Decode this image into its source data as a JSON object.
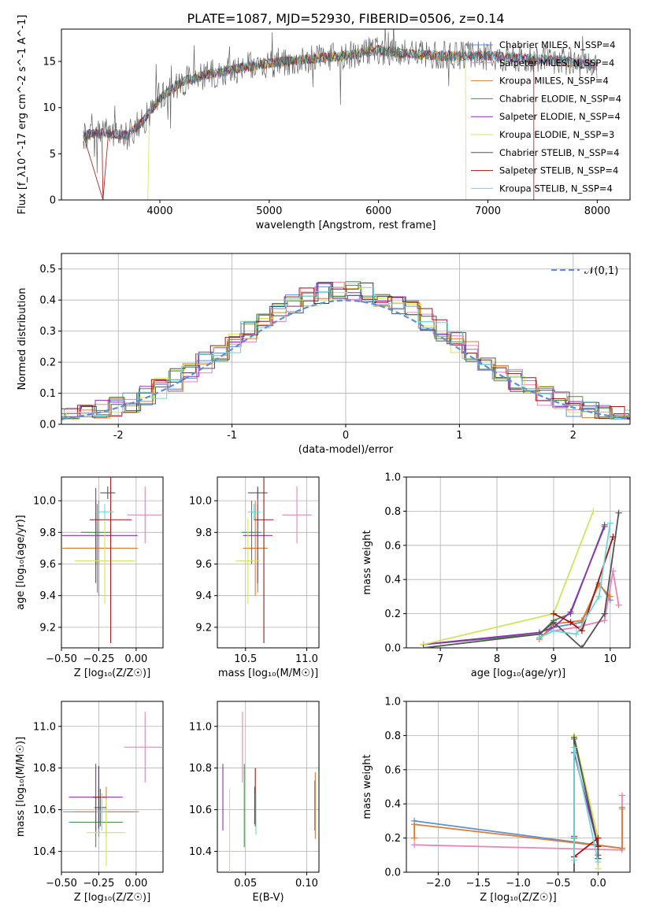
{
  "colors": {
    "Chabrier MILES": "#5b8fd6",
    "Salpeter MILES": "#e884b8",
    "Kroupa MILES": "#e07c2e",
    "Chabrier ELODIE": "#4d8a4d",
    "Salpeter ELODIE": "#8e2fb5",
    "Kroupa ELODIE": "#d2e55a",
    "Chabrier STELIB": "#555555",
    "Salpeter STELIB": "#a01616",
    "Kroupa STELIB": "#6ed6d6"
  },
  "chart_data": [
    {
      "id": "spectrum",
      "type": "line",
      "title": "PLATE=1087, MJD=52930, FIBERID=0506, z=0.14",
      "xlabel": "wavelength [Angstrom, rest frame]",
      "ylabel": "Flux [f_λ10^-17 erg cm^-2 s^-1 A^-1]",
      "xlim": [
        3100,
        8300
      ],
      "ylim": [
        0,
        18.5
      ],
      "xticks": [
        4000,
        5000,
        6000,
        7000,
        8000
      ],
      "yticks": [
        0,
        5,
        10,
        15
      ],
      "grid": false,
      "legend": "right",
      "series": [
        {
          "name": "Chabrier MILES, N_SSP=4",
          "color": "Chabrier MILES"
        },
        {
          "name": "Salpeter MILES, N_SSP=4",
          "color": "Salpeter MILES"
        },
        {
          "name": "Kroupa MILES, N_SSP=4",
          "color": "Kroupa MILES"
        },
        {
          "name": "Chabrier ELODIE, N_SSP=4",
          "color": "Chabrier ELODIE"
        },
        {
          "name": "Salpeter ELODIE, N_SSP=4",
          "color": "Salpeter ELODIE"
        },
        {
          "name": "Kroupa ELODIE, N_SSP=3",
          "color": "Kroupa ELODIE"
        },
        {
          "name": "Chabrier STELIB, N_SSP=4",
          "color": "Chabrier STELIB"
        },
        {
          "name": "Salpeter STELIB, N_SSP=4",
          "color": "Salpeter STELIB"
        },
        {
          "name": "Kroupa STELIB, N_SSP=4",
          "color": "Kroupa STELIB"
        }
      ],
      "continuum_x": [
        3300,
        3500,
        3700,
        3850,
        4000,
        4200,
        4400,
        4700,
        5000,
        5300,
        5600,
        6000,
        6300,
        6600,
        7000,
        7400,
        7800,
        8000
      ],
      "continuum_y": [
        7.0,
        7.3,
        7.0,
        8.6,
        11.0,
        12.8,
        13.5,
        14.2,
        14.8,
        15.2,
        15.5,
        16.2,
        15.8,
        15.6,
        15.6,
        15.3,
        14.9,
        14.5
      ],
      "cutoffs": [
        {
          "series": "Salpeter STELIB",
          "from": 3300,
          "to": 7420,
          "drop_start": 3480,
          "drop_end": 3530
        },
        {
          "series": "Kroupa ELODIE",
          "from": 3900,
          "to": 6800,
          "drop_start": 3890,
          "drop_end": 3905
        }
      ]
    },
    {
      "id": "residuals",
      "type": "histogram",
      "xlabel": "(data-model)/error",
      "ylabel": "Normed distribution",
      "xlim": [
        -2.5,
        2.5
      ],
      "ylim": [
        0,
        0.55
      ],
      "xticks": [
        -2,
        -1,
        0,
        1,
        2
      ],
      "yticks": [
        0.0,
        0.1,
        0.2,
        0.3,
        0.4,
        0.5
      ],
      "grid": true,
      "legend": "top-right",
      "reference": {
        "name": "𝒩(0,1)",
        "mean": 0,
        "sigma": 1,
        "color": "#5b8fd6"
      },
      "bins": 40
    },
    {
      "id": "age-vs-Z",
      "type": "scatter",
      "xlabel": "Z [log₁₀(Z/Z☉)]",
      "ylabel": "age  [log₁₀(age/yr)]",
      "xlim": [
        -0.5,
        0.18
      ],
      "ylim": [
        9.07,
        10.15
      ],
      "xticks": [
        -0.5,
        -0.25,
        0.0
      ],
      "xtick_labels": [
        "−0.50",
        "−0.25",
        "0.00"
      ],
      "yticks": [
        9.2,
        9.4,
        9.6,
        9.8,
        10.0
      ],
      "grid": true,
      "points": [
        {
          "series": "Chabrier MILES",
          "x": -0.26,
          "xerr": 0.22,
          "y": 9.7,
          "yerr": 0.28
        },
        {
          "series": "Salpeter MILES",
          "x": 0.06,
          "xerr": 0.12,
          "y": 9.91,
          "yerr": 0.18
        },
        {
          "series": "Kroupa MILES",
          "x": -0.25,
          "xerr": 0.26,
          "y": 9.7,
          "yerr": 0.3
        },
        {
          "series": "Chabrier ELODIE",
          "x": -0.27,
          "xerr": 0.1,
          "y": 9.8,
          "yerr": 0.2
        },
        {
          "series": "Salpeter ELODIE",
          "x": -0.27,
          "xerr": 0.28,
          "y": 9.78,
          "yerr": 0.3
        },
        {
          "series": "Kroupa ELODIE",
          "x": -0.21,
          "xerr": 0.2,
          "y": 9.62,
          "yerr": 0.27
        },
        {
          "series": "Chabrier STELIB",
          "x": -0.19,
          "xerr": 0.05,
          "y": 10.05,
          "yerr": 0.04
        },
        {
          "series": "Salpeter STELIB",
          "x": -0.17,
          "xerr": 0.14,
          "y": 9.88,
          "yerr": 0.78
        },
        {
          "series": "Kroupa STELIB",
          "x": -0.21,
          "xerr": 0.06,
          "y": 9.93,
          "yerr": 0.05
        }
      ]
    },
    {
      "id": "age-vs-mass",
      "type": "scatter",
      "xlabel": "mass [log₁₀(M/M☉)]",
      "xlim": [
        10.27,
        11.1
      ],
      "ylim": [
        9.07,
        10.15
      ],
      "xticks": [
        10.5,
        11.0
      ],
      "yticks": [
        9.2,
        9.4,
        9.6,
        9.8,
        10.0
      ],
      "grid": true,
      "points": [
        {
          "series": "Chabrier MILES",
          "x": 10.6,
          "xerr": 0.08,
          "y": 9.7,
          "yerr": 0.28
        },
        {
          "series": "Salpeter MILES",
          "x": 10.92,
          "xerr": 0.12,
          "y": 9.91,
          "yerr": 0.18
        },
        {
          "series": "Kroupa MILES",
          "x": 10.58,
          "xerr": 0.1,
          "y": 9.7,
          "yerr": 0.3
        },
        {
          "series": "Chabrier ELODIE",
          "x": 10.55,
          "xerr": 0.08,
          "y": 9.8,
          "yerr": 0.2
        },
        {
          "series": "Salpeter ELODIE",
          "x": 10.6,
          "xerr": 0.12,
          "y": 9.78,
          "yerr": 0.3
        },
        {
          "series": "Kroupa ELODIE",
          "x": 10.52,
          "xerr": 0.1,
          "y": 9.62,
          "yerr": 0.27
        },
        {
          "series": "Chabrier STELIB",
          "x": 10.6,
          "xerr": 0.08,
          "y": 10.05,
          "yerr": 0.04
        },
        {
          "series": "Salpeter STELIB",
          "x": 10.65,
          "xerr": 0.08,
          "y": 9.88,
          "yerr": 0.78
        },
        {
          "series": "Kroupa STELIB",
          "x": 10.57,
          "xerr": 0.05,
          "y": 9.93,
          "yerr": 0.05
        }
      ]
    },
    {
      "id": "weight-vs-age",
      "type": "line",
      "xlabel": "age  [log₁₀(age/yr)]",
      "ylabel": "mass weight",
      "xlim": [
        6.4,
        10.35
      ],
      "ylim": [
        0,
        1.0
      ],
      "xticks": [
        7,
        8,
        9,
        10
      ],
      "yticks": [
        0.0,
        0.2,
        0.4,
        0.6,
        0.8,
        1.0
      ],
      "grid": true,
      "series": [
        {
          "name": "Chabrier MILES",
          "x": [
            8.75,
            9.0,
            9.5,
            9.8,
            10.0
          ],
          "y": [
            0.06,
            0.12,
            0.15,
            0.38,
            0.28
          ]
        },
        {
          "name": "Salpeter MILES",
          "x": [
            9.0,
            9.4,
            9.9,
            10.05,
            10.15
          ],
          "y": [
            0.1,
            0.12,
            0.16,
            0.45,
            0.25
          ]
        },
        {
          "name": "Kroupa MILES",
          "x": [
            8.75,
            9.0,
            9.5,
            9.8,
            10.0
          ],
          "y": [
            0.05,
            0.14,
            0.16,
            0.37,
            0.3
          ]
        },
        {
          "name": "Chabrier ELODIE",
          "x": [
            6.7,
            8.75,
            9.0,
            9.3,
            9.9
          ],
          "y": [
            0.02,
            0.08,
            0.16,
            0.2,
            0.72
          ]
        },
        {
          "name": "Salpeter ELODIE",
          "x": [
            6.7,
            8.75,
            9.0,
            9.3,
            9.9
          ],
          "y": [
            0.02,
            0.09,
            0.12,
            0.21,
            0.71
          ]
        },
        {
          "name": "Kroupa ELODIE",
          "x": [
            6.7,
            9.0,
            9.7
          ],
          "y": [
            0.02,
            0.2,
            0.8
          ]
        },
        {
          "name": "Chabrier STELIB",
          "x": [
            6.7,
            8.75,
            9.0,
            9.5,
            9.9,
            10.15
          ],
          "y": [
            0.0,
            0.08,
            0.15,
            0.0,
            0.2,
            0.79
          ]
        },
        {
          "name": "Salpeter STELIB",
          "x": [
            9.0,
            9.3,
            9.5,
            10.05
          ],
          "y": [
            0.2,
            0.15,
            0.1,
            0.65
          ]
        },
        {
          "name": "Kroupa STELIB",
          "x": [
            8.75,
            9.0,
            9.4,
            9.8,
            10.0
          ],
          "y": [
            0.06,
            0.1,
            0.08,
            0.3,
            0.73
          ]
        }
      ]
    },
    {
      "id": "mass-vs-Z",
      "type": "scatter",
      "xlabel": "Z [log₁₀(Z/Z☉)]",
      "ylabel": "mass [log₁₀(M/M☉)]",
      "xlim": [
        -0.5,
        0.18
      ],
      "ylim": [
        10.3,
        11.12
      ],
      "xticks": [
        -0.5,
        -0.25,
        0.0
      ],
      "xtick_labels": [
        "−0.50",
        "−0.25",
        "0.00"
      ],
      "yticks": [
        10.4,
        10.6,
        10.8,
        11.0
      ],
      "grid": true,
      "points": [
        {
          "series": "Chabrier MILES",
          "x": -0.25,
          "xerr": 0.24,
          "y": 10.59,
          "yerr": 0.12
        },
        {
          "series": "Salpeter MILES",
          "x": 0.06,
          "xerr": 0.14,
          "y": 10.9,
          "yerr": 0.17
        },
        {
          "series": "Kroupa MILES",
          "x": -0.2,
          "xerr": 0.22,
          "y": 10.59,
          "yerr": 0.12
        },
        {
          "series": "Chabrier ELODIE",
          "x": -0.27,
          "xerr": 0.18,
          "y": 10.54,
          "yerr": 0.12
        },
        {
          "series": "Salpeter ELODIE",
          "x": -0.27,
          "xerr": 0.18,
          "y": 10.66,
          "yerr": 0.16
        },
        {
          "series": "Kroupa ELODIE",
          "x": -0.2,
          "xerr": 0.13,
          "y": 10.49,
          "yerr": 0.16
        },
        {
          "series": "Chabrier STELIB",
          "x": -0.24,
          "xerr": 0.04,
          "y": 10.61,
          "yerr": 0.09
        },
        {
          "series": "Salpeter STELIB",
          "x": -0.25,
          "xerr": 0.04,
          "y": 10.66,
          "yerr": 0.15
        },
        {
          "series": "Kroupa STELIB",
          "x": -0.23,
          "xerr": 0.04,
          "y": 10.59,
          "yerr": 0.09
        }
      ]
    },
    {
      "id": "mass-vs-EBV",
      "type": "scatter",
      "xlabel": "E(B-V)",
      "xlim": [
        0.027,
        0.11
      ],
      "ylim": [
        10.3,
        11.12
      ],
      "xticks": [
        0.05,
        0.1
      ],
      "xtick_labels": [
        "0.05",
        "0.10"
      ],
      "yticks": [
        10.4,
        10.6,
        10.8,
        11.0
      ],
      "grid": true,
      "points": [
        {
          "series": "Chabrier MILES",
          "x": 0.1065,
          "y": 10.62,
          "yerr": 0.12
        },
        {
          "series": "Salpeter MILES",
          "x": 0.0475,
          "y": 10.9,
          "yerr": 0.17
        },
        {
          "series": "Kroupa MILES",
          "x": 0.107,
          "y": 10.62,
          "yerr": 0.16
        },
        {
          "series": "Chabrier ELODIE",
          "x": 0.049,
          "y": 10.62,
          "yerr": 0.2
        },
        {
          "series": "Salpeter ELODIE",
          "x": 0.0315,
          "y": 10.66,
          "yerr": 0.16
        },
        {
          "series": "Kroupa ELODIE",
          "x": 0.037,
          "y": 10.5,
          "yerr": 0.2
        },
        {
          "series": "Chabrier STELIB",
          "x": 0.0575,
          "y": 10.62,
          "yerr": 0.09
        },
        {
          "series": "Salpeter STELIB",
          "x": 0.058,
          "y": 10.66,
          "yerr": 0.14
        },
        {
          "series": "Kroupa STELIB",
          "x": 0.0585,
          "y": 10.58,
          "yerr": 0.1
        }
      ]
    },
    {
      "id": "weight-vs-Z",
      "type": "line",
      "xlabel": "Z [log₁₀(Z/Z☉)]",
      "ylabel": "mass weight",
      "xlim": [
        -2.4,
        0.4
      ],
      "ylim": [
        0,
        1.0
      ],
      "xticks": [
        -2.0,
        -1.5,
        -1.0,
        -0.5,
        0.0
      ],
      "xtick_labels": [
        "−2.0",
        "−1.5",
        "−1.0",
        "−0.5",
        "0.0"
      ],
      "yticks": [
        0.0,
        0.2,
        0.4,
        0.6,
        0.8,
        1.0
      ],
      "grid": true,
      "series": [
        {
          "name": "Chabrier MILES",
          "x": [
            -2.3,
            0.3,
            0.3
          ],
          "y": [
            0.3,
            0.14,
            0.38
          ]
        },
        {
          "name": "Salpeter MILES",
          "x": [
            -2.3,
            0.3,
            0.3
          ],
          "y": [
            0.16,
            0.13,
            0.45
          ]
        },
        {
          "name": "Kroupa MILES",
          "x": [
            -2.3,
            -2.3,
            0.3,
            0.3
          ],
          "y": [
            0.2,
            0.28,
            0.14,
            0.37
          ]
        },
        {
          "name": "Chabrier ELODIE",
          "x": [
            -0.3,
            -0.3,
            0.0,
            0.0
          ],
          "y": [
            0.2,
            0.78,
            0.15,
            0.08
          ]
        },
        {
          "name": "Salpeter ELODIE",
          "x": [
            -0.3,
            -0.3,
            0.0,
            0.0
          ],
          "y": [
            0.21,
            0.7,
            0.15,
            0.1
          ]
        },
        {
          "name": "Kroupa ELODIE",
          "x": [
            -0.3,
            0.0,
            0.0
          ],
          "y": [
            0.8,
            0.2,
            0.02
          ]
        },
        {
          "name": "Chabrier STELIB",
          "x": [
            -0.3,
            -0.3,
            0.0,
            0.0
          ],
          "y": [
            0.0,
            0.79,
            0.15,
            0.08
          ]
        },
        {
          "name": "Salpeter STELIB",
          "x": [
            -0.3,
            0.0,
            0.0
          ],
          "y": [
            0.09,
            0.2,
            0.15
          ]
        },
        {
          "name": "Kroupa STELIB",
          "x": [
            -0.3,
            -0.3,
            0.0
          ],
          "y": [
            0.07,
            0.73,
            0.06
          ]
        }
      ]
    }
  ]
}
